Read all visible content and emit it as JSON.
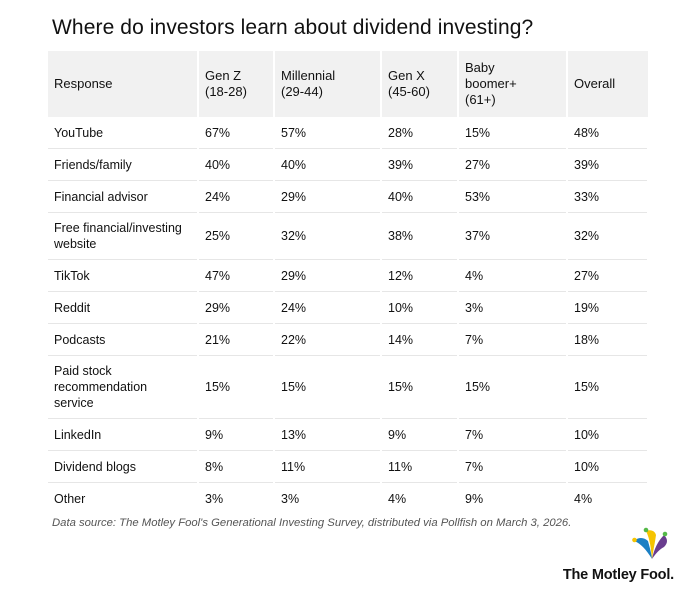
{
  "title": "Where do investors learn about dividend investing?",
  "table": {
    "headers": [
      [
        "Response"
      ],
      [
        "Gen Z",
        "(18-28)"
      ],
      [
        "Millennial",
        "(29-44)"
      ],
      [
        "Gen X",
        "(45-60)"
      ],
      [
        "Baby",
        "boomer+",
        "(61+)"
      ],
      [
        "Overall"
      ]
    ],
    "rows": [
      {
        "response": [
          "YouTube"
        ],
        "values": [
          "67%",
          "57%",
          "28%",
          "15%",
          "48%"
        ]
      },
      {
        "response": [
          "Friends/family"
        ],
        "values": [
          "40%",
          "40%",
          "39%",
          "27%",
          "39%"
        ]
      },
      {
        "response": [
          "Financial advisor"
        ],
        "values": [
          "24%",
          "29%",
          "40%",
          "53%",
          "33%"
        ]
      },
      {
        "response": [
          "Free financial/investing",
          "website"
        ],
        "values": [
          "25%",
          "32%",
          "38%",
          "37%",
          "32%"
        ]
      },
      {
        "response": [
          "TikTok"
        ],
        "values": [
          "47%",
          "29%",
          "12%",
          "4%",
          "27%"
        ]
      },
      {
        "response": [
          "Reddit"
        ],
        "values": [
          "29%",
          "24%",
          "10%",
          "3%",
          "19%"
        ]
      },
      {
        "response": [
          "Podcasts"
        ],
        "values": [
          "21%",
          "22%",
          "14%",
          "7%",
          "18%"
        ]
      },
      {
        "response": [
          "Paid stock",
          "recommendation",
          "service"
        ],
        "values": [
          "15%",
          "15%",
          "15%",
          "15%",
          "15%"
        ]
      },
      {
        "response": [
          "LinkedIn"
        ],
        "values": [
          "9%",
          "13%",
          "9%",
          "7%",
          "10%"
        ]
      },
      {
        "response": [
          "Dividend blogs"
        ],
        "values": [
          "8%",
          "11%",
          "11%",
          "7%",
          "10%"
        ]
      },
      {
        "response": [
          "Other"
        ],
        "values": [
          "3%",
          "3%",
          "4%",
          "9%",
          "4%"
        ]
      }
    ]
  },
  "source": "Data source: The Motley Fool's Generational Investing Survey, distributed via Pollfish on March 3, 2026.",
  "logo": {
    "text": "The Motley Fool.",
    "icon": "jester-hat-icon",
    "colors": {
      "blue": "#1a7fc4",
      "yellow": "#f5c400",
      "green": "#54b948",
      "purple": "#6a3d8f"
    }
  }
}
